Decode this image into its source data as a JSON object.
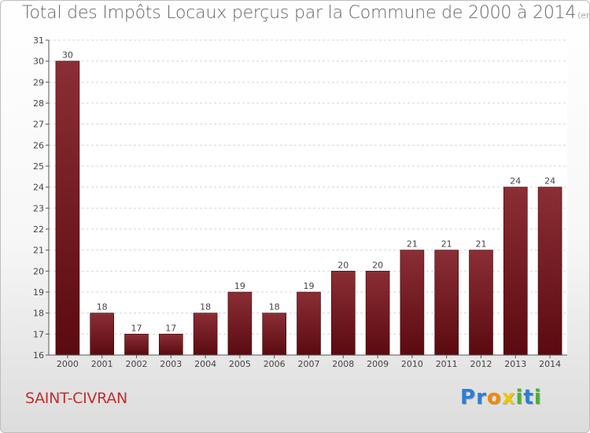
{
  "chart_data": {
    "type": "bar",
    "title": "Total des Impôts Locaux perçus par la Commune de 2000 à 2014",
    "unit_note": "(en milliers d'€)",
    "categories": [
      "2000",
      "2001",
      "2002",
      "2003",
      "2004",
      "2005",
      "2006",
      "2007",
      "2008",
      "2009",
      "2010",
      "2011",
      "2012",
      "2013",
      "2014"
    ],
    "values": [
      30,
      18,
      17,
      17,
      18,
      19,
      18,
      19,
      20,
      20,
      21,
      21,
      21,
      24,
      24
    ],
    "ylim": [
      16,
      31
    ],
    "yticks": [
      16,
      17,
      18,
      19,
      20,
      21,
      22,
      23,
      24,
      25,
      26,
      27,
      28,
      29,
      30,
      31
    ],
    "xlabel": "",
    "ylabel": "",
    "grid": true,
    "bar_color_top": "#8b2e35",
    "bar_color_bottom": "#5a0a10"
  },
  "commune": "SAINT-CIVRAN",
  "logo": {
    "letters": [
      "P",
      "r",
      "o",
      "x",
      "i",
      "t",
      "i"
    ],
    "colors": [
      "#2a7fd4",
      "#2a7fd4",
      "#f08a00",
      "#f0c800",
      "#4caf32",
      "#2a7fd4",
      "#4caf32"
    ]
  }
}
